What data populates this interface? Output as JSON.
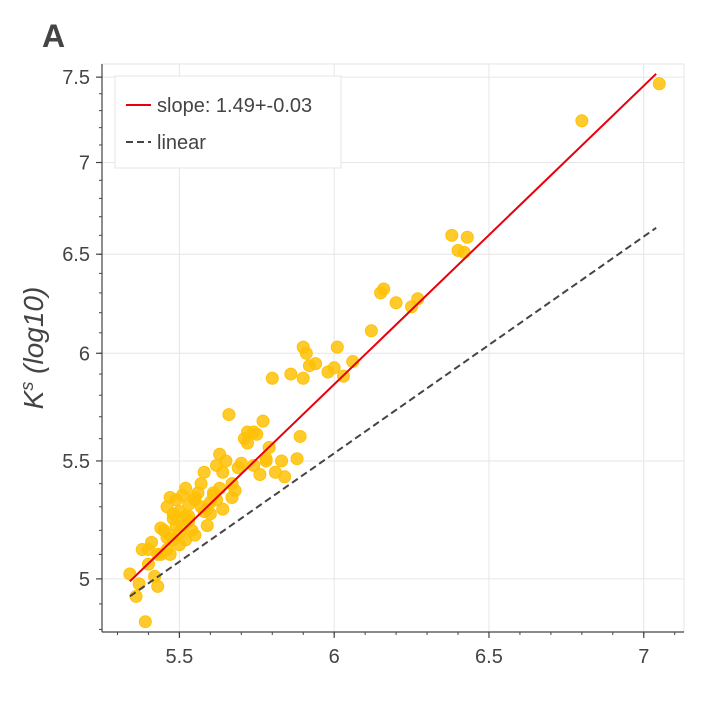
{
  "panel_label": "A",
  "colors": {
    "points": "#ffc107",
    "fit_line": "#e8000b",
    "linear_line": "#444444",
    "grid": "#e6e6e6",
    "axis": "#444444"
  },
  "chart_data": {
    "type": "scatter",
    "title": "",
    "xlabel": "",
    "ylabel_main": "K",
    "ylabel_sup": "s",
    "ylabel_rest": " (log10)",
    "xlim": [
      5.25,
      7.13
    ],
    "ylim": [
      4.79,
      7.58
    ],
    "x_ticks": [
      5.5,
      6,
      6.5,
      7
    ],
    "x_tick_labels": [
      "5.5",
      "6",
      "6.5",
      "7"
    ],
    "y_ticks": [
      5,
      5.5,
      6,
      6.5,
      7,
      7.5
    ],
    "y_tick_labels": [
      "5",
      "5.5",
      "6",
      "6.5",
      "7",
      "7.5"
    ],
    "grid": true,
    "legend_position": "top-left",
    "legend": [
      {
        "label": "slope: 1.49+-0.03",
        "style": "solid",
        "color": "#e8000b"
      },
      {
        "label": "linear",
        "style": "dashed",
        "color": "#444444"
      }
    ],
    "fit_line": {
      "x": [
        5.34,
        7.04
      ],
      "y": [
        4.99,
        7.52
      ]
    },
    "linear_line": {
      "x": [
        5.34,
        7.04
      ],
      "y": [
        4.93,
        6.64
      ]
    },
    "points": {
      "x": [
        5.34,
        5.36,
        5.37,
        5.39,
        5.4,
        5.41,
        5.42,
        5.43,
        5.44,
        5.45,
        5.46,
        5.46,
        5.47,
        5.47,
        5.48,
        5.48,
        5.49,
        5.49,
        5.5,
        5.5,
        5.5,
        5.51,
        5.51,
        5.52,
        5.52,
        5.53,
        5.53,
        5.54,
        5.55,
        5.55,
        5.56,
        5.57,
        5.57,
        5.58,
        5.59,
        5.6,
        5.6,
        5.61,
        5.62,
        5.62,
        5.63,
        5.63,
        5.64,
        5.65,
        5.66,
        5.67,
        5.68,
        5.7,
        5.71,
        5.72,
        5.74,
        5.75,
        5.76,
        5.77,
        5.78,
        5.79,
        5.8,
        5.81,
        5.83,
        5.84,
        5.86,
        5.88,
        5.89,
        5.9,
        5.91,
        5.92,
        5.94,
        5.98,
        6.0,
        6.01,
        6.03,
        6.06,
        6.12,
        6.15,
        6.16,
        6.2,
        6.25,
        6.27,
        6.38,
        6.4,
        6.42,
        6.43,
        6.8,
        7.05,
        5.38,
        5.4,
        5.43,
        5.46,
        5.48,
        5.52,
        5.55,
        5.58,
        5.61,
        5.64,
        5.67,
        5.69,
        5.72,
        5.74,
        5.78,
        5.9,
        5.44,
        5.47,
        5.53,
        5.59
      ],
      "y": [
        5.02,
        4.93,
        4.98,
        4.83,
        5.12,
        5.15,
        5.01,
        4.97,
        5.1,
        5.2,
        5.12,
        5.3,
        5.18,
        5.34,
        5.25,
        5.16,
        5.22,
        5.33,
        5.19,
        5.14,
        5.28,
        5.22,
        5.35,
        5.16,
        5.26,
        5.24,
        5.31,
        5.2,
        5.18,
        5.34,
        5.36,
        5.4,
        5.3,
        5.28,
        5.22,
        5.32,
        5.27,
        5.36,
        5.48,
        5.33,
        5.53,
        5.38,
        5.45,
        5.5,
        5.71,
        5.4,
        5.37,
        5.49,
        5.6,
        5.63,
        5.48,
        5.62,
        5.44,
        5.68,
        5.51,
        5.56,
        5.88,
        5.45,
        5.5,
        5.43,
        5.9,
        5.51,
        5.61,
        6.03,
        6.0,
        5.94,
        5.95,
        5.91,
        5.93,
        6.03,
        5.89,
        5.96,
        6.11,
        6.3,
        6.32,
        6.25,
        6.23,
        6.27,
        6.6,
        6.52,
        6.51,
        6.59,
        7.24,
        7.46,
        5.12,
        5.06,
        5.1,
        5.17,
        5.27,
        5.38,
        5.33,
        5.45,
        5.35,
        5.29,
        5.34,
        5.47,
        5.58,
        5.63,
        5.5,
        5.88,
        5.21,
        5.1,
        5.26,
        5.29
      ]
    }
  }
}
